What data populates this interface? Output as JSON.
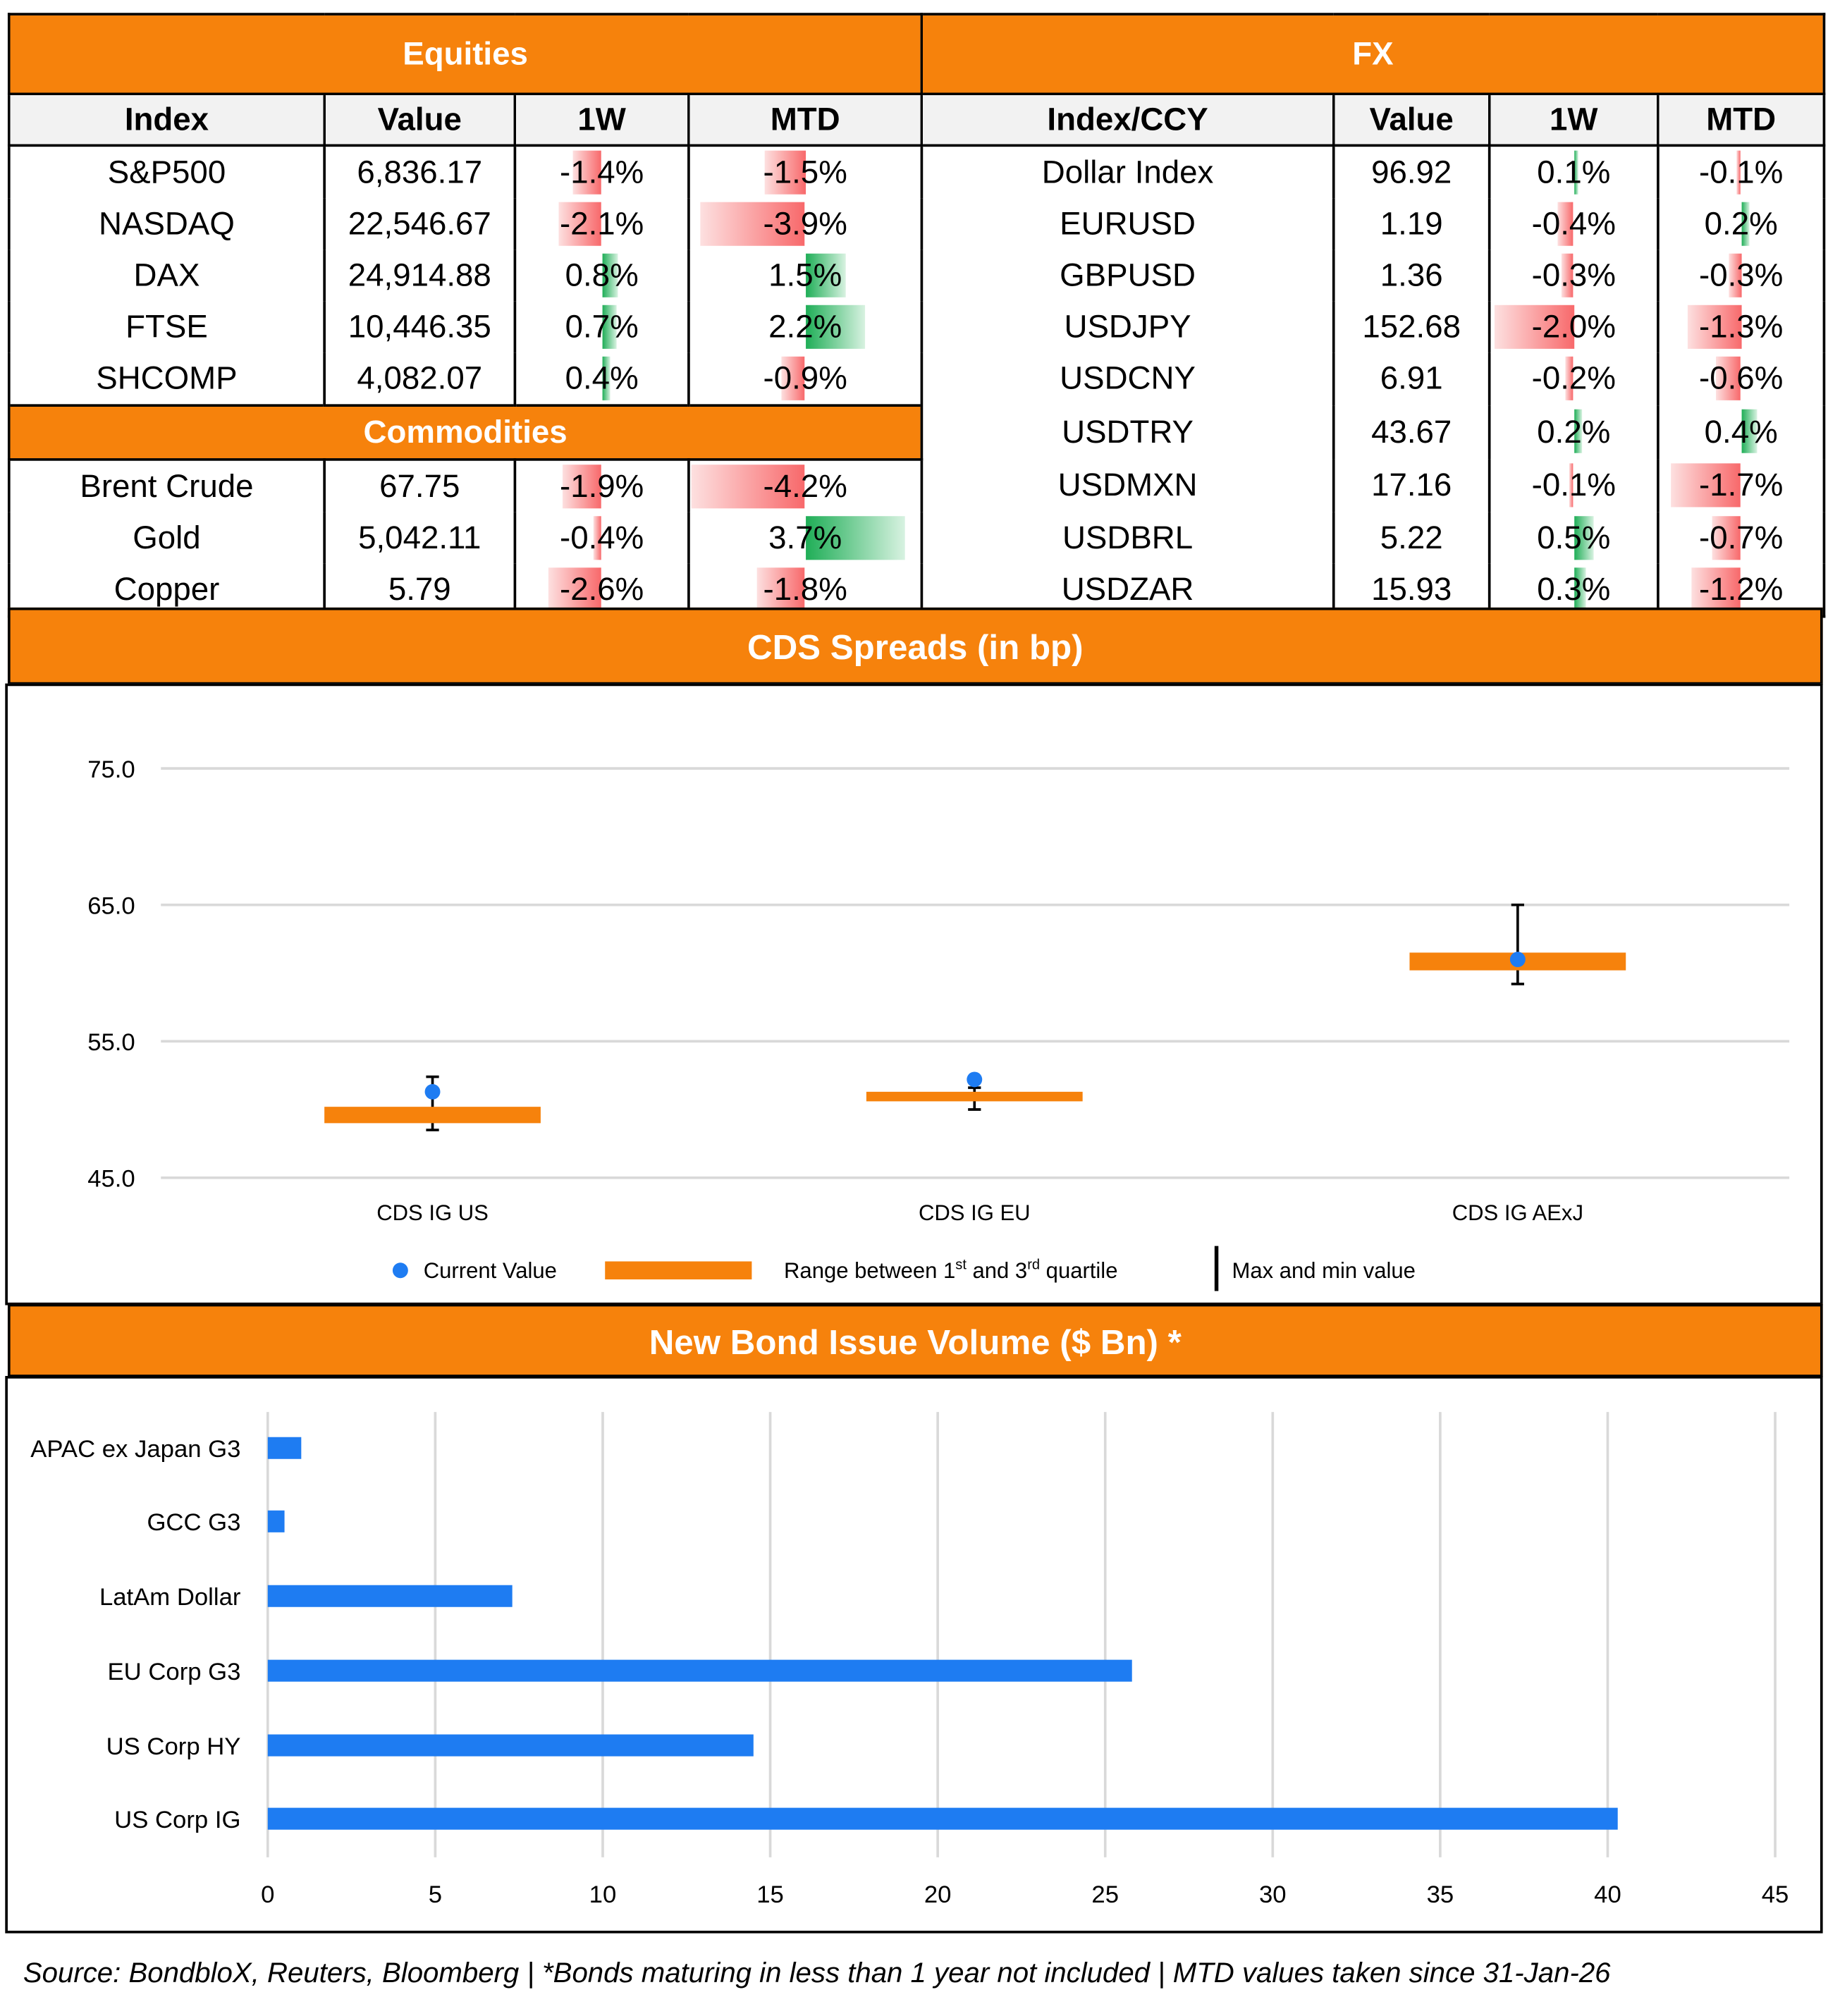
{
  "equities": {
    "title": "Equities",
    "headers": [
      "Index",
      "Value",
      "1W",
      "MTD"
    ],
    "rows": [
      {
        "name": "S&P500",
        "value": "6,836.17",
        "w1": -1.4,
        "mtd": -1.5
      },
      {
        "name": "NASDAQ",
        "value": "22,546.67",
        "w1": -2.1,
        "mtd": -3.9
      },
      {
        "name": "DAX",
        "value": "24,914.88",
        "w1": 0.8,
        "mtd": 1.5
      },
      {
        "name": "FTSE",
        "value": "10,446.35",
        "w1": 0.7,
        "mtd": 2.2
      },
      {
        "name": "SHCOMP",
        "value": "4,082.07",
        "w1": 0.4,
        "mtd": -0.9
      }
    ]
  },
  "commodities": {
    "title": "Commodities",
    "rows": [
      {
        "name": "Brent Crude",
        "value": "67.75",
        "w1": -1.9,
        "mtd": -4.2
      },
      {
        "name": "Gold",
        "value": "5,042.11",
        "w1": -0.4,
        "mtd": 3.7
      },
      {
        "name": "Copper",
        "value": "5.79",
        "w1": -2.6,
        "mtd": -1.8
      }
    ]
  },
  "fx": {
    "title": "FX",
    "headers": [
      "Index/CCY",
      "Value",
      "1W",
      "MTD"
    ],
    "rows": [
      {
        "name": "Dollar Index",
        "value": "96.92",
        "w1": 0.1,
        "mtd": -0.1
      },
      {
        "name": "EURUSD",
        "value": "1.19",
        "w1": -0.4,
        "mtd": 0.2
      },
      {
        "name": "GBPUSD",
        "value": "1.36",
        "w1": -0.3,
        "mtd": -0.3
      },
      {
        "name": "USDJPY",
        "value": "152.68",
        "w1": -2.0,
        "mtd": -1.3
      },
      {
        "name": "USDCNY",
        "value": "6.91",
        "w1": -0.2,
        "mtd": -0.6
      },
      {
        "name": "USDTRY",
        "value": "43.67",
        "w1": 0.2,
        "mtd": 0.4
      },
      {
        "name": "USDMXN",
        "value": "17.16",
        "w1": -0.1,
        "mtd": -1.7
      },
      {
        "name": "USDBRL",
        "value": "5.22",
        "w1": 0.5,
        "mtd": -0.7
      },
      {
        "name": "USDZAR",
        "value": "15.93",
        "w1": 0.3,
        "mtd": -1.2
      }
    ]
  },
  "colors": {
    "accent": "#f6820c",
    "negative": "#f8696b",
    "positive": "#1fae57",
    "point": "#1e7cf2"
  },
  "chart_data": [
    {
      "type": "box",
      "title": "CDS Spreads (in bp)",
      "categories": [
        "CDS IG US",
        "CDS IG EU",
        "CDS IG AExJ"
      ],
      "current": [
        51.3,
        52.2,
        61.0
      ],
      "q1": [
        49.0,
        50.6,
        60.2
      ],
      "q3": [
        50.2,
        51.3,
        61.5
      ],
      "min": [
        48.5,
        50.0,
        59.2
      ],
      "max": [
        52.4,
        51.6,
        65.0
      ],
      "ylim": [
        45,
        75
      ],
      "yticks": [
        "45.0",
        "55.0",
        "65.0",
        "75.0"
      ],
      "grid": true,
      "legend": {
        "current": "Current Value",
        "range": "Range between 1",
        "range_sup1": "st",
        "range_mid": " and 3",
        "range_sup2": "rd",
        "range_end": " quartile",
        "minmax": "Max and min value"
      },
      "legend_position": "bottom"
    },
    {
      "type": "bar",
      "orientation": "horizontal",
      "title": "New Bond Issue Volume ($ Bn) *",
      "categories": [
        "APAC ex Japan G3",
        "GCC G3",
        "LatAm Dollar",
        "EU Corp G3",
        "US Corp HY",
        "US Corp IG"
      ],
      "values": [
        1.0,
        0.5,
        7.3,
        25.8,
        14.5,
        40.3
      ],
      "xlim": [
        0,
        45
      ],
      "xticks": [
        "0",
        "5",
        "10",
        "15",
        "20",
        "25",
        "30",
        "35",
        "40",
        "45"
      ],
      "grid": true
    }
  ],
  "footer": "Source: BondbloX, Reuters, Bloomberg | *Bonds maturing in less than 1 year not included | MTD values taken since 31-Jan-26"
}
